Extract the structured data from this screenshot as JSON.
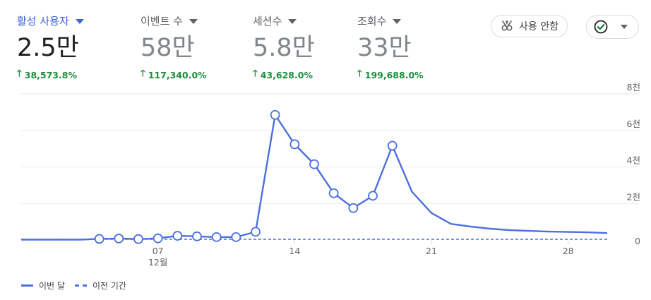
{
  "metrics": [
    {
      "label": "활성 사용자",
      "value": "2.5만",
      "change": "38,573.8%"
    },
    {
      "label": "이벤트 수",
      "value": "58만",
      "change": "117,340.0%"
    },
    {
      "label": "세션수",
      "value": "5.8만",
      "change": "43,628.0%"
    },
    {
      "label": "조회수",
      "value": "33만",
      "change": "199,688.0%"
    }
  ],
  "toolbar": {
    "usage_guide_label": "사용 안함"
  },
  "colors": {
    "accent": "#3f62d4",
    "series": "#4d6fe0",
    "positive": "#1e8e3e"
  },
  "chart_data": {
    "type": "line",
    "x_tick_labels": [
      "07",
      "14",
      "21",
      "28"
    ],
    "x_tick_days": [
      7,
      14,
      21,
      28
    ],
    "x_sublabel": "12월",
    "y_tick_labels": [
      "0",
      "2천",
      "4천",
      "6천",
      "8천"
    ],
    "y_tick_values": [
      0,
      2000,
      4000,
      6000,
      8000
    ],
    "ylim": [
      0,
      8000
    ],
    "xlim": [
      0,
      30
    ],
    "series": [
      {
        "name": "이번 달",
        "style": "solid",
        "x": [
          0,
          1,
          2,
          3,
          4,
          5,
          6,
          7,
          8,
          9,
          10,
          11,
          12,
          13,
          14,
          15,
          16,
          17,
          18,
          19,
          20,
          21,
          22,
          23,
          24,
          25,
          26,
          27,
          28,
          29,
          30
        ],
        "y": [
          20,
          20,
          20,
          20,
          60,
          80,
          50,
          90,
          230,
          200,
          160,
          160,
          450,
          6850,
          5240,
          4150,
          2560,
          1750,
          2420,
          5160,
          2650,
          1480,
          880,
          740,
          620,
          540,
          500,
          460,
          440,
          420,
          380
        ],
        "markers": [
          4,
          5,
          6,
          7,
          8,
          9,
          10,
          11,
          12,
          13,
          14,
          15,
          16,
          17,
          18,
          19
        ]
      },
      {
        "name": "이전 기간",
        "style": "dashed",
        "x": [
          0,
          30
        ],
        "y": [
          0,
          0
        ]
      }
    ],
    "grid": true,
    "legend_position": "bottom-left"
  }
}
